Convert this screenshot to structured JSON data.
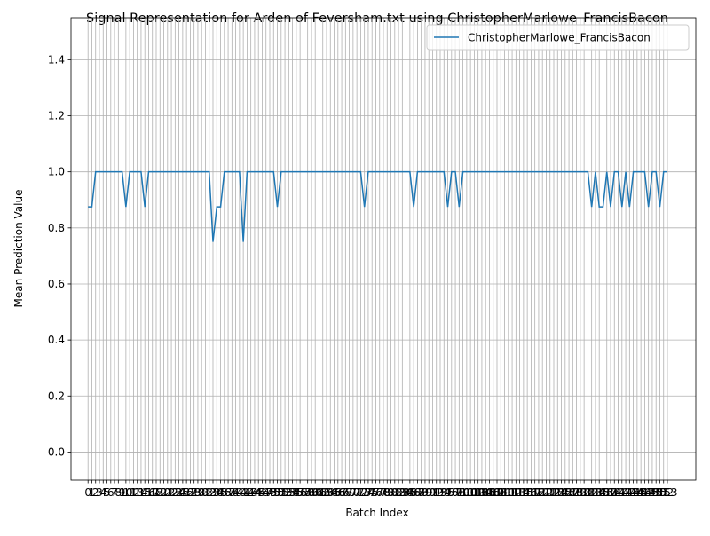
{
  "chart_data": {
    "type": "line",
    "title": "Signal Representation for Arden of Feversham.txt using ChristopherMarlowe_FrancisBacon",
    "xlabel": "Batch Index",
    "ylabel": "Mean Prediction Value",
    "x": [
      0,
      1,
      2,
      3,
      4,
      5,
      6,
      7,
      8,
      9,
      10,
      11,
      12,
      13,
      14,
      15,
      16,
      17,
      18,
      19,
      20,
      21,
      22,
      23,
      24,
      25,
      26,
      27,
      28,
      29,
      30,
      31,
      32,
      33,
      34,
      35,
      36,
      37,
      38,
      39,
      40,
      41,
      42,
      43,
      44,
      45,
      46,
      47,
      48,
      49,
      50,
      51,
      52,
      53,
      54,
      55,
      56,
      57,
      58,
      59,
      60,
      61,
      62,
      63,
      64,
      65,
      66,
      67,
      68,
      69,
      70,
      71,
      72,
      73,
      74,
      75,
      76,
      77,
      78,
      79,
      80,
      81,
      82,
      83,
      84,
      85,
      86,
      87,
      88,
      89,
      90,
      91,
      92,
      93,
      94,
      95,
      96,
      97,
      98,
      99,
      100,
      101,
      102,
      103,
      104,
      105,
      106,
      107,
      108,
      109,
      110,
      111,
      112,
      113,
      114,
      115,
      116,
      117,
      118,
      119,
      120,
      121,
      122,
      123,
      124,
      125,
      126,
      127,
      128,
      129,
      130,
      131,
      132,
      133,
      134,
      135,
      136,
      137,
      138,
      139,
      140,
      141,
      142,
      143,
      144,
      145,
      146,
      147,
      148,
      149,
      150,
      151,
      152,
      153
    ],
    "series": [
      {
        "name": "ChristopherMarlowe_FrancisBacon",
        "color": "#1f77b4",
        "values": [
          0.875,
          0.875,
          1,
          1,
          1,
          1,
          1,
          1,
          1,
          1,
          0.875,
          1,
          1,
          1,
          1,
          0.875,
          1,
          1,
          1,
          1,
          1,
          1,
          1,
          1,
          1,
          1,
          1,
          1,
          1,
          1,
          1,
          1,
          1,
          0.75,
          0.875,
          0.875,
          1,
          1,
          1,
          1,
          1,
          0.75,
          1,
          1,
          1,
          1,
          1,
          1,
          1,
          1,
          0.875,
          1,
          1,
          1,
          1,
          1,
          1,
          1,
          1,
          1,
          1,
          1,
          1,
          1,
          1,
          1,
          1,
          1,
          1,
          1,
          1,
          1,
          1,
          0.875,
          1,
          1,
          1,
          1,
          1,
          1,
          1,
          1,
          1,
          1,
          1,
          1,
          0.875,
          1,
          1,
          1,
          1,
          1,
          1,
          1,
          1,
          0.875,
          1,
          1,
          0.875,
          1,
          1,
          1,
          1,
          1,
          1,
          1,
          1,
          1,
          1,
          1,
          1,
          1,
          1,
          1,
          1,
          1,
          1,
          1,
          1,
          1,
          1,
          1,
          1,
          1,
          1,
          1,
          1,
          1,
          1,
          1,
          1,
          1,
          1,
          0.875,
          1,
          0.875,
          0.875,
          1,
          0.875,
          1,
          1,
          0.875,
          1,
          0.875,
          1,
          1,
          1,
          1,
          0.875,
          1,
          1,
          0.875,
          1,
          1
        ]
      }
    ],
    "xlim": [
      -4.5,
      160.5
    ],
    "xticks": [
      0,
      1,
      2,
      3,
      4,
      5,
      6,
      7,
      8,
      9,
      10,
      11,
      12,
      13,
      14,
      15,
      16,
      17,
      18,
      19,
      20,
      21,
      22,
      23,
      24,
      25,
      26,
      27,
      28,
      29,
      30,
      31,
      32,
      33,
      34,
      35,
      36,
      37,
      38,
      39,
      40,
      41,
      42,
      43,
      44,
      45,
      46,
      47,
      48,
      49,
      50,
      51,
      52,
      53,
      54,
      55,
      56,
      57,
      58,
      59,
      60,
      61,
      62,
      63,
      64,
      65,
      66,
      67,
      68,
      69,
      70,
      71,
      72,
      73,
      74,
      75,
      76,
      77,
      78,
      79,
      80,
      81,
      82,
      83,
      84,
      85,
      86,
      87,
      88,
      89,
      90,
      91,
      92,
      93,
      94,
      95,
      96,
      97,
      98,
      99,
      100,
      101,
      102,
      103,
      104,
      105,
      106,
      107,
      108,
      109,
      110,
      111,
      112,
      113,
      114,
      115,
      116,
      117,
      118,
      119,
      120,
      121,
      122,
      123,
      124,
      125,
      126,
      127,
      128,
      129,
      130,
      131,
      132,
      133,
      134,
      135,
      136,
      137,
      138,
      139,
      140,
      141,
      142,
      143,
      144,
      145,
      146,
      147,
      148,
      149,
      150,
      151,
      152,
      153
    ],
    "ylim": [
      -0.1,
      1.55
    ],
    "yticks": [
      {
        "value": 0,
        "label": "0.0"
      },
      0.2,
      0.4,
      0.6,
      0.8,
      {
        "value": 1,
        "label": "1.0"
      },
      1.2,
      1.4
    ],
    "grid": true,
    "legend": "upper right"
  }
}
